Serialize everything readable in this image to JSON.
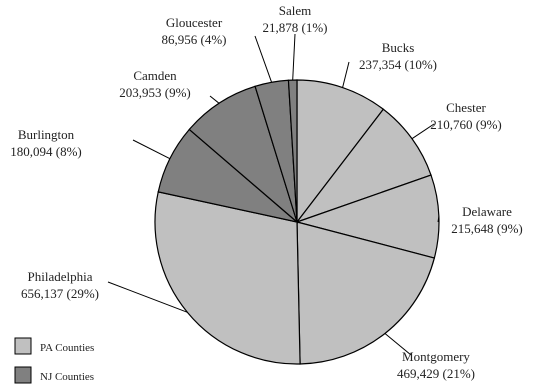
{
  "chart_data": {
    "type": "pie",
    "title": "",
    "slices": [
      {
        "name": "Bucks",
        "value": 237354,
        "percent": "10%",
        "group": "PA",
        "value_text": "237,354 (10%)"
      },
      {
        "name": "Chester",
        "value": 210760,
        "percent": "9%",
        "group": "PA",
        "value_text": "210,760 (9%)"
      },
      {
        "name": "Delaware",
        "value": 215648,
        "percent": "9%",
        "group": "PA",
        "value_text": "215,648 (9%)"
      },
      {
        "name": "Montgomery",
        "value": 469429,
        "percent": "21%",
        "group": "PA",
        "value_text": "469,429 (21%)"
      },
      {
        "name": "Philadelphia",
        "value": 656137,
        "percent": "29%",
        "group": "PA",
        "value_text": "656,137 (29%)"
      },
      {
        "name": "Burlington",
        "value": 180094,
        "percent": "8%",
        "group": "NJ",
        "value_text": "180,094 (8%)"
      },
      {
        "name": "Camden",
        "value": 203953,
        "percent": "9%",
        "group": "NJ",
        "value_text": "203,953 (9%)"
      },
      {
        "name": "Gloucester",
        "value": 86956,
        "percent": "4%",
        "group": "NJ",
        "value_text": "86,956 (4%)"
      },
      {
        "name": "Salem",
        "value": 21878,
        "percent": "1%",
        "group": "NJ",
        "value_text": "21,878 (1%)"
      }
    ],
    "legend": [
      {
        "label": "PA Counties",
        "group": "PA"
      },
      {
        "label": "NJ Counties",
        "group": "NJ"
      }
    ],
    "legend_position": "bottom-left",
    "colors": {
      "PA": "#c0c0c0",
      "NJ": "#808080",
      "stroke": "#000000"
    }
  }
}
